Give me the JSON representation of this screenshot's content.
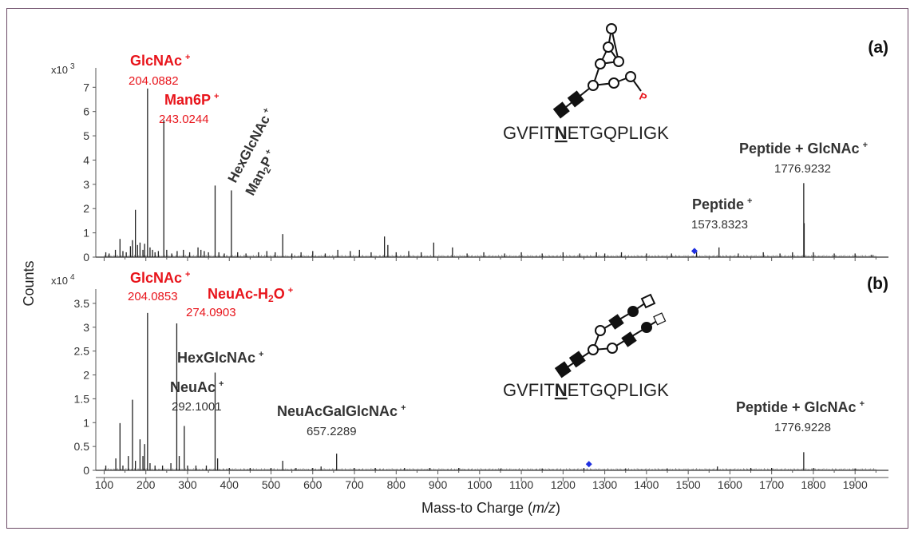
{
  "chart_data": {
    "type": "line",
    "xlabel_prefix": "Mass-to Charge (",
    "xlabel_italic": "m/z",
    "xlabel_suffix": ")",
    "ylabel": "Counts",
    "xlim": [
      80,
      1980
    ],
    "x_ticks": [
      100,
      200,
      300,
      400,
      500,
      600,
      700,
      800,
      900,
      1000,
      1100,
      1200,
      1300,
      1400,
      1500,
      1600,
      1700,
      1800,
      1900
    ],
    "panels": [
      {
        "id": "a",
        "tag": "(a)",
        "scale_base": "x10",
        "scale_exp": "3",
        "ylim": [
          0,
          7.8
        ],
        "y_ticks": [
          0,
          1,
          2,
          3,
          4,
          5,
          6,
          7
        ],
        "sequence": {
          "pre": "GVFIT",
          "mid": "N",
          "post": "ETGQPLIGK"
        },
        "phospho_label": "P",
        "peaks": [
          [
            104,
            0.2
          ],
          [
            112,
            0.15
          ],
          [
            127,
            0.3
          ],
          [
            138,
            0.75
          ],
          [
            145,
            0.25
          ],
          [
            153,
            0.2
          ],
          [
            163,
            0.45
          ],
          [
            168,
            0.7
          ],
          [
            175,
            1.95
          ],
          [
            180,
            0.5
          ],
          [
            186,
            0.6
          ],
          [
            193,
            0.3
          ],
          [
            197,
            0.55
          ],
          [
            204.0882,
            6.95
          ],
          [
            210,
            0.4
          ],
          [
            216,
            0.3
          ],
          [
            222,
            0.2
          ],
          [
            230,
            0.25
          ],
          [
            243.0244,
            5.65
          ],
          [
            250,
            0.3
          ],
          [
            262,
            0.15
          ],
          [
            275,
            0.25
          ],
          [
            290,
            0.3
          ],
          [
            305,
            0.2
          ],
          [
            325,
            0.4
          ],
          [
            332,
            0.3
          ],
          [
            340,
            0.25
          ],
          [
            350,
            0.2
          ],
          [
            366,
            2.95
          ],
          [
            375,
            0.2
          ],
          [
            388,
            0.15
          ],
          [
            405,
            2.75
          ],
          [
            420,
            0.2
          ],
          [
            440,
            0.15
          ],
          [
            470,
            0.2
          ],
          [
            490,
            0.25
          ],
          [
            510,
            0.2
          ],
          [
            528,
            0.95
          ],
          [
            550,
            0.15
          ],
          [
            572,
            0.2
          ],
          [
            600,
            0.25
          ],
          [
            630,
            0.15
          ],
          [
            660,
            0.3
          ],
          [
            690,
            0.25
          ],
          [
            712,
            0.3
          ],
          [
            740,
            0.2
          ],
          [
            772,
            0.85
          ],
          [
            780,
            0.5
          ],
          [
            800,
            0.2
          ],
          [
            830,
            0.25
          ],
          [
            860,
            0.2
          ],
          [
            890,
            0.6
          ],
          [
            935,
            0.4
          ],
          [
            970,
            0.15
          ],
          [
            1010,
            0.2
          ],
          [
            1060,
            0.15
          ],
          [
            1100,
            0.2
          ],
          [
            1150,
            0.15
          ],
          [
            1200,
            0.2
          ],
          [
            1240,
            0.15
          ],
          [
            1280,
            0.2
          ],
          [
            1300,
            0.15
          ],
          [
            1340,
            0.2
          ],
          [
            1400,
            0.15
          ],
          [
            1460,
            0.15
          ],
          [
            1520,
            0.2
          ],
          [
            1573.8323,
            0.4
          ],
          [
            1620,
            0.15
          ],
          [
            1680,
            0.2
          ],
          [
            1720,
            0.15
          ],
          [
            1750,
            0.2
          ],
          [
            1776.9232,
            3.05
          ],
          [
            1778,
            1.4
          ],
          [
            1800,
            0.2
          ],
          [
            1850,
            0.15
          ],
          [
            1900,
            0.15
          ],
          [
            1940,
            0.1
          ]
        ],
        "marker_x": 1515,
        "marker_y": 0.25,
        "annotations": [
          {
            "name": "GlcNAc",
            "color": "red",
            "sup": "+",
            "value": "204.0882"
          },
          {
            "name": "Man6P",
            "color": "red",
            "sup": "+",
            "value": "243.0244"
          },
          {
            "name": "HexGlcNAc",
            "color": "black",
            "sup": "+"
          },
          {
            "name": "Man",
            "sub": "2",
            "suffix": "P",
            "color": "black",
            "sup": "+"
          },
          {
            "name": "Peptide",
            "color": "black",
            "sup": "+",
            "value": "1573.8323"
          },
          {
            "name": "Peptide + GlcNAc",
            "color": "black",
            "sup": "+",
            "value": "1776.9232"
          }
        ]
      },
      {
        "id": "b",
        "tag": "(b)",
        "scale_base": "x10",
        "scale_exp": "4",
        "ylim": [
          0,
          3.8
        ],
        "y_ticks": [
          0,
          0.5,
          1,
          1.5,
          2,
          2.5,
          3,
          3.5
        ],
        "y_tick_labels": [
          "0",
          "0.5",
          "1",
          "1.5",
          "2",
          "2.5",
          "3",
          "3.5"
        ],
        "sequence": {
          "pre": "GVFIT",
          "mid": "N",
          "post": "ETGQPLIGK"
        },
        "peaks": [
          [
            104,
            0.1
          ],
          [
            128,
            0.25
          ],
          [
            138,
            0.99
          ],
          [
            145,
            0.1
          ],
          [
            158,
            0.3
          ],
          [
            168,
            1.48
          ],
          [
            175,
            0.2
          ],
          [
            186,
            0.65
          ],
          [
            193,
            0.3
          ],
          [
            197,
            0.55
          ],
          [
            204.0853,
            3.3
          ],
          [
            210,
            0.15
          ],
          [
            222,
            0.1
          ],
          [
            240,
            0.1
          ],
          [
            260,
            0.15
          ],
          [
            274.0903,
            3.08
          ],
          [
            280,
            0.3
          ],
          [
            292.1001,
            0.93
          ],
          [
            300,
            0.1
          ],
          [
            320,
            0.1
          ],
          [
            345,
            0.1
          ],
          [
            366,
            2.05
          ],
          [
            372,
            0.25
          ],
          [
            400,
            0.05
          ],
          [
            450,
            0.05
          ],
          [
            500,
            0.05
          ],
          [
            528,
            0.2
          ],
          [
            560,
            0.05
          ],
          [
            600,
            0.05
          ],
          [
            620,
            0.08
          ],
          [
            657.2289,
            0.35
          ],
          [
            700,
            0.05
          ],
          [
            750,
            0.05
          ],
          [
            820,
            0.05
          ],
          [
            880,
            0.05
          ],
          [
            950,
            0.05
          ],
          [
            1050,
            0.04
          ],
          [
            1150,
            0.04
          ],
          [
            1250,
            0.05
          ],
          [
            1350,
            0.04
          ],
          [
            1450,
            0.04
          ],
          [
            1570,
            0.08
          ],
          [
            1650,
            0.05
          ],
          [
            1700,
            0.05
          ],
          [
            1776.9228,
            0.38
          ],
          [
            1800,
            0.05
          ],
          [
            1900,
            0.04
          ]
        ],
        "marker_x": 1262,
        "marker_y": 0.13,
        "annotations": [
          {
            "name": "GlcNAc",
            "color": "red",
            "sup": "+",
            "value": "204.0853"
          },
          {
            "name": "NeuAc-H",
            "sub": "2",
            "suffix": "O",
            "color": "red",
            "sup": "+",
            "value": "274.0903"
          },
          {
            "name": "HexGlcNAc",
            "color": "black",
            "sup": "+"
          },
          {
            "name": "NeuAc",
            "color": "black",
            "sup": "+",
            "value": "292.1001"
          },
          {
            "name": "NeuAcGalGlcNAc",
            "color": "black",
            "sup": "+",
            "value": "657.2289"
          },
          {
            "name": "Peptide + GlcNAc",
            "color": "black",
            "sup": "+",
            "value": "1776.9228"
          }
        ]
      }
    ]
  }
}
